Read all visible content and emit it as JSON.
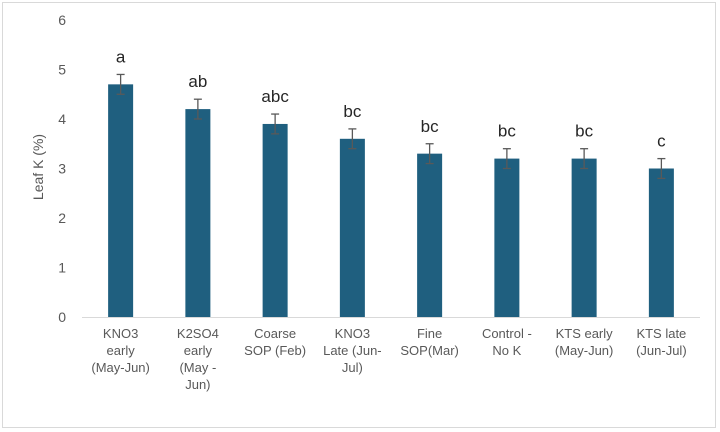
{
  "chart_data": {
    "type": "bar",
    "title": "",
    "xlabel": "",
    "ylabel": "Leaf K (%)",
    "ylim": [
      0,
      6
    ],
    "yticks": [
      0,
      1,
      2,
      3,
      4,
      5,
      6
    ],
    "grid": false,
    "legend": "none",
    "bar_color": "#1f5f7f",
    "error_color": "#595959",
    "categories": [
      [
        "KNO3",
        "early",
        "(May-Jun)"
      ],
      [
        "K2SO4",
        "early",
        "(May -",
        "Jun)"
      ],
      [
        "Coarse",
        "SOP (Feb)"
      ],
      [
        "KNO3",
        "Late (Jun-",
        "Jul)"
      ],
      [
        "Fine",
        "SOP(Mar)"
      ],
      [
        "Control -",
        "No K"
      ],
      [
        "KTS early",
        "(May-Jun)"
      ],
      [
        "KTS late",
        "(Jun-Jul)"
      ]
    ],
    "values": [
      4.7,
      4.2,
      3.9,
      3.6,
      3.3,
      3.2,
      3.2,
      3.0
    ],
    "errors": [
      0.2,
      0.2,
      0.2,
      0.2,
      0.2,
      0.2,
      0.2,
      0.2
    ],
    "significance": [
      "a",
      "ab",
      "abc",
      "bc",
      "bc",
      "bc",
      "bc",
      "c"
    ]
  }
}
